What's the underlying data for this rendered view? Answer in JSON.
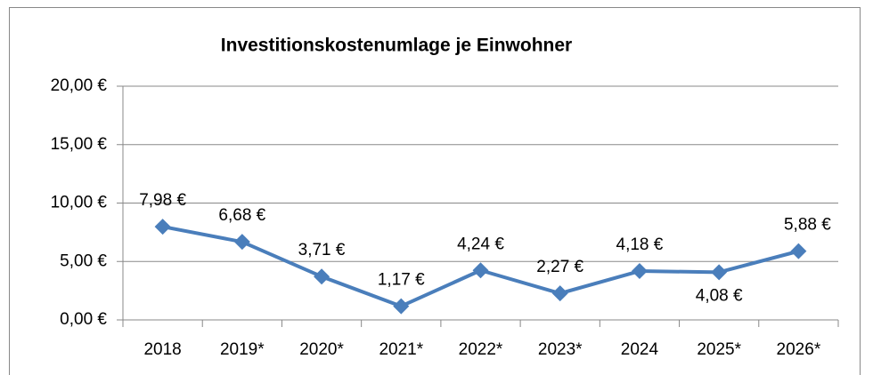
{
  "chart_data": {
    "type": "line",
    "title": "Investitionskostenumlage je Einwohner",
    "categories": [
      "2018",
      "2019*",
      "2020*",
      "2021*",
      "2022*",
      "2023*",
      "2024",
      "2025*",
      "2026*"
    ],
    "series": [
      {
        "name": "Investitionskostenumlage je Einwohner",
        "color": "#4a7ebb",
        "values": [
          7.98,
          6.68,
          3.71,
          1.17,
          4.24,
          2.27,
          4.18,
          4.08,
          5.88
        ],
        "value_labels": [
          "7,98 €",
          "6,68 €",
          "3,71 €",
          "1,17 €",
          "4,24 €",
          "2,27 €",
          "4,18 €",
          "4,08 €",
          "5,88 €"
        ]
      }
    ],
    "ylim": [
      0,
      20
    ],
    "yticks": [
      {
        "value": 0,
        "label": "0,00 €"
      },
      {
        "value": 5,
        "label": "5,00 €"
      },
      {
        "value": 10,
        "label": "10,00 €"
      },
      {
        "value": 15,
        "label": "15,00 €"
      },
      {
        "value": 20,
        "label": "20,00 €"
      }
    ],
    "grid": true
  }
}
